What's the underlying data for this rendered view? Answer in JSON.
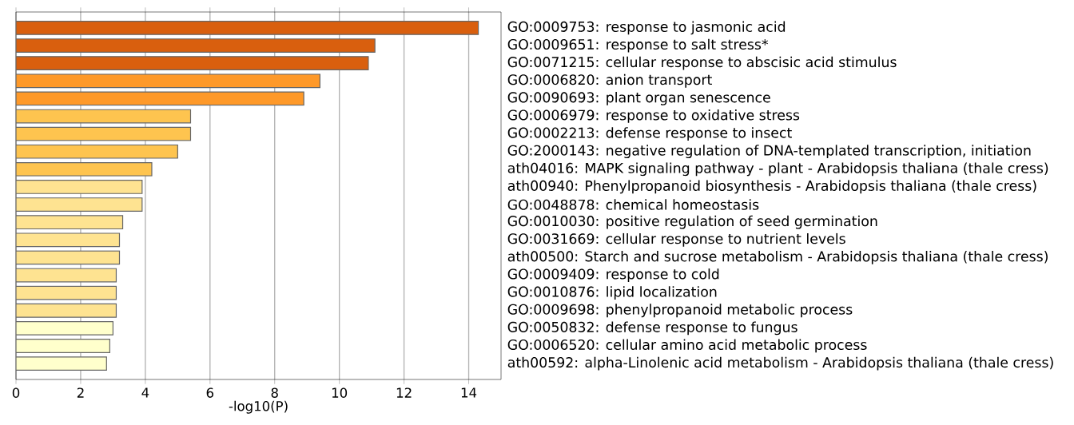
{
  "chart_data": {
    "type": "bar",
    "orientation": "horizontal",
    "xlabel": "-log10(P)",
    "categories": [
      "GO:0009753: response to jasmonic acid",
      "GO:0009651: response to salt stress*",
      "GO:0071215: cellular response to abscisic acid stimulus",
      "GO:0006820: anion transport",
      "GO:0090693: plant organ senescence",
      "GO:0006979: response to oxidative stress",
      "GO:0002213: defense response to insect",
      "GO:2000143: negative regulation of DNA-templated transcription, initiation",
      "ath04016: MAPK signaling pathway - plant - Arabidopsis thaliana (thale cress)",
      "ath00940: Phenylpropanoid biosynthesis - Arabidopsis thaliana (thale cress)",
      "GO:0048878: chemical homeostasis",
      "GO:0010030: positive regulation of seed germination",
      "GO:0031669: cellular response to nutrient levels",
      "ath00500: Starch and sucrose metabolism - Arabidopsis thaliana (thale cress)",
      "GO:0009409: response to cold",
      "GO:0010876: lipid localization",
      "GO:0009698: phenylpropanoid metabolic process",
      "GO:0050832: defense response to fungus",
      "GO:0006520: cellular amino acid metabolic process",
      "ath00592: alpha-Linolenic acid metabolism - Arabidopsis thaliana (thale cress)"
    ],
    "values": [
      14.3,
      11.1,
      10.9,
      9.4,
      8.9,
      5.4,
      5.4,
      5.0,
      4.2,
      3.9,
      3.9,
      3.3,
      3.2,
      3.2,
      3.1,
      3.1,
      3.1,
      3.0,
      2.9,
      2.8
    ],
    "colors": [
      "#d95f0e",
      "#d95f0e",
      "#d95f0e",
      "#fe9929",
      "#fe9929",
      "#fec44f",
      "#fec44f",
      "#fec44f",
      "#fec44f",
      "#fee391",
      "#fee391",
      "#fee391",
      "#fee391",
      "#fee391",
      "#fee391",
      "#fee391",
      "#fee391",
      "#ffffcc",
      "#ffffcc",
      "#ffffcc"
    ],
    "xlim": [
      0,
      15
    ],
    "xticks": [
      0,
      2,
      4,
      6,
      8,
      10,
      12,
      14
    ],
    "grid": "x"
  }
}
